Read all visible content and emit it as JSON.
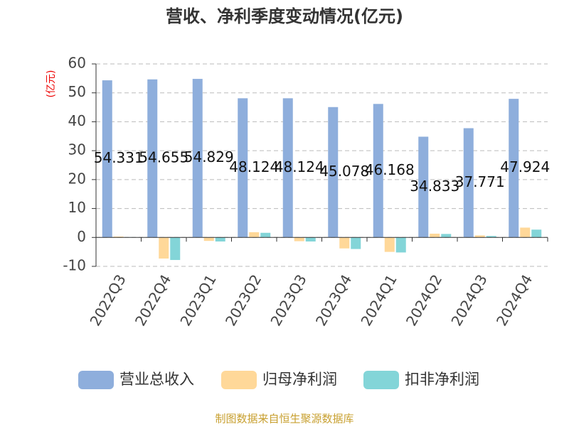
{
  "chart_data": {
    "type": "bar",
    "title": "营收、净利季度变动情况(亿元)",
    "y_label": "(亿元)",
    "categories": [
      "2022Q3",
      "2022Q4",
      "2023Q1",
      "2023Q2",
      "2023Q3",
      "2023Q4",
      "2024Q1",
      "2024Q2",
      "2024Q3",
      "2024Q4"
    ],
    "series": [
      {
        "name": "营业总收入",
        "color": "#8eaedc",
        "values": [
          54.331,
          54.655,
          54.829,
          48.124,
          48.124,
          45.078,
          46.168,
          34.833,
          37.771,
          47.924
        ]
      },
      {
        "name": "归母净利润",
        "color": "#ffd899",
        "values": [
          0.3,
          -7.3,
          -1.2,
          1.8,
          -1.3,
          -3.8,
          -5.0,
          1.3,
          0.7,
          3.4
        ]
      },
      {
        "name": "扣非净利润",
        "color": "#83d5d8",
        "values": [
          0.1,
          -7.8,
          -1.4,
          1.6,
          -1.4,
          -4.0,
          -5.2,
          1.2,
          0.5,
          2.7
        ]
      }
    ],
    "ylim": [
      -10,
      60
    ],
    "yticks": [
      -10,
      0,
      10,
      20,
      30,
      40,
      50,
      60
    ],
    "grid": true,
    "source": "制图数据来自恒生聚源数据库"
  }
}
